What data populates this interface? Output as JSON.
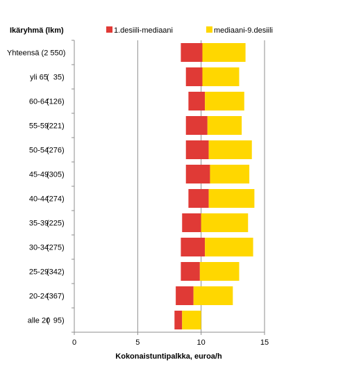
{
  "chart_data": {
    "type": "bar",
    "orientation": "horizontal",
    "stacked": true,
    "ylabel": "Ikäryhmä (lkm)",
    "xlabel": "Kokonaistuntipalkka, euroa/h",
    "categories": [
      {
        "name": "Yhteensä",
        "count": "(2 550)"
      },
      {
        "name": "yli 65",
        "count": "(  35)"
      },
      {
        "name": "60-64",
        "count": "(126)"
      },
      {
        "name": "55-59",
        "count": "(221)"
      },
      {
        "name": "50-54",
        "count": "(276)"
      },
      {
        "name": "45-49",
        "count": "(305)"
      },
      {
        "name": "40-44",
        "count": "(274)"
      },
      {
        "name": "35-39",
        "count": "(225)"
      },
      {
        "name": "30-34",
        "count": "(275)"
      },
      {
        "name": "25-29",
        "count": "(342)"
      },
      {
        "name": "20-24",
        "count": "(367)"
      },
      {
        "name": "alle 20",
        "count": "(  95)"
      }
    ],
    "series": [
      {
        "name": "1.desiili-mediaani",
        "color": "#e03a36",
        "ranges": [
          [
            8.4,
            10.1
          ],
          [
            8.8,
            10.1
          ],
          [
            9.0,
            10.3
          ],
          [
            8.8,
            10.5
          ],
          [
            8.8,
            10.6
          ],
          [
            8.8,
            10.7
          ],
          [
            9.0,
            10.6
          ],
          [
            8.5,
            10.0
          ],
          [
            8.4,
            10.3
          ],
          [
            8.4,
            9.9
          ],
          [
            8.0,
            9.4
          ],
          [
            7.9,
            8.5
          ]
        ]
      },
      {
        "name": "mediaani-9.desiili",
        "color": "#ffd700",
        "ranges": [
          [
            10.1,
            13.5
          ],
          [
            10.1,
            13.0
          ],
          [
            10.3,
            13.4
          ],
          [
            10.5,
            13.2
          ],
          [
            10.6,
            14.0
          ],
          [
            10.7,
            13.8
          ],
          [
            10.6,
            14.2
          ],
          [
            10.0,
            13.7
          ],
          [
            10.3,
            14.1
          ],
          [
            9.9,
            13.0
          ],
          [
            9.4,
            12.5
          ],
          [
            8.5,
            10.0
          ]
        ]
      }
    ],
    "xlim": [
      0,
      15
    ],
    "xticks": [
      0,
      5,
      10,
      15
    ],
    "grid": "vertical",
    "legend_position": "top"
  }
}
